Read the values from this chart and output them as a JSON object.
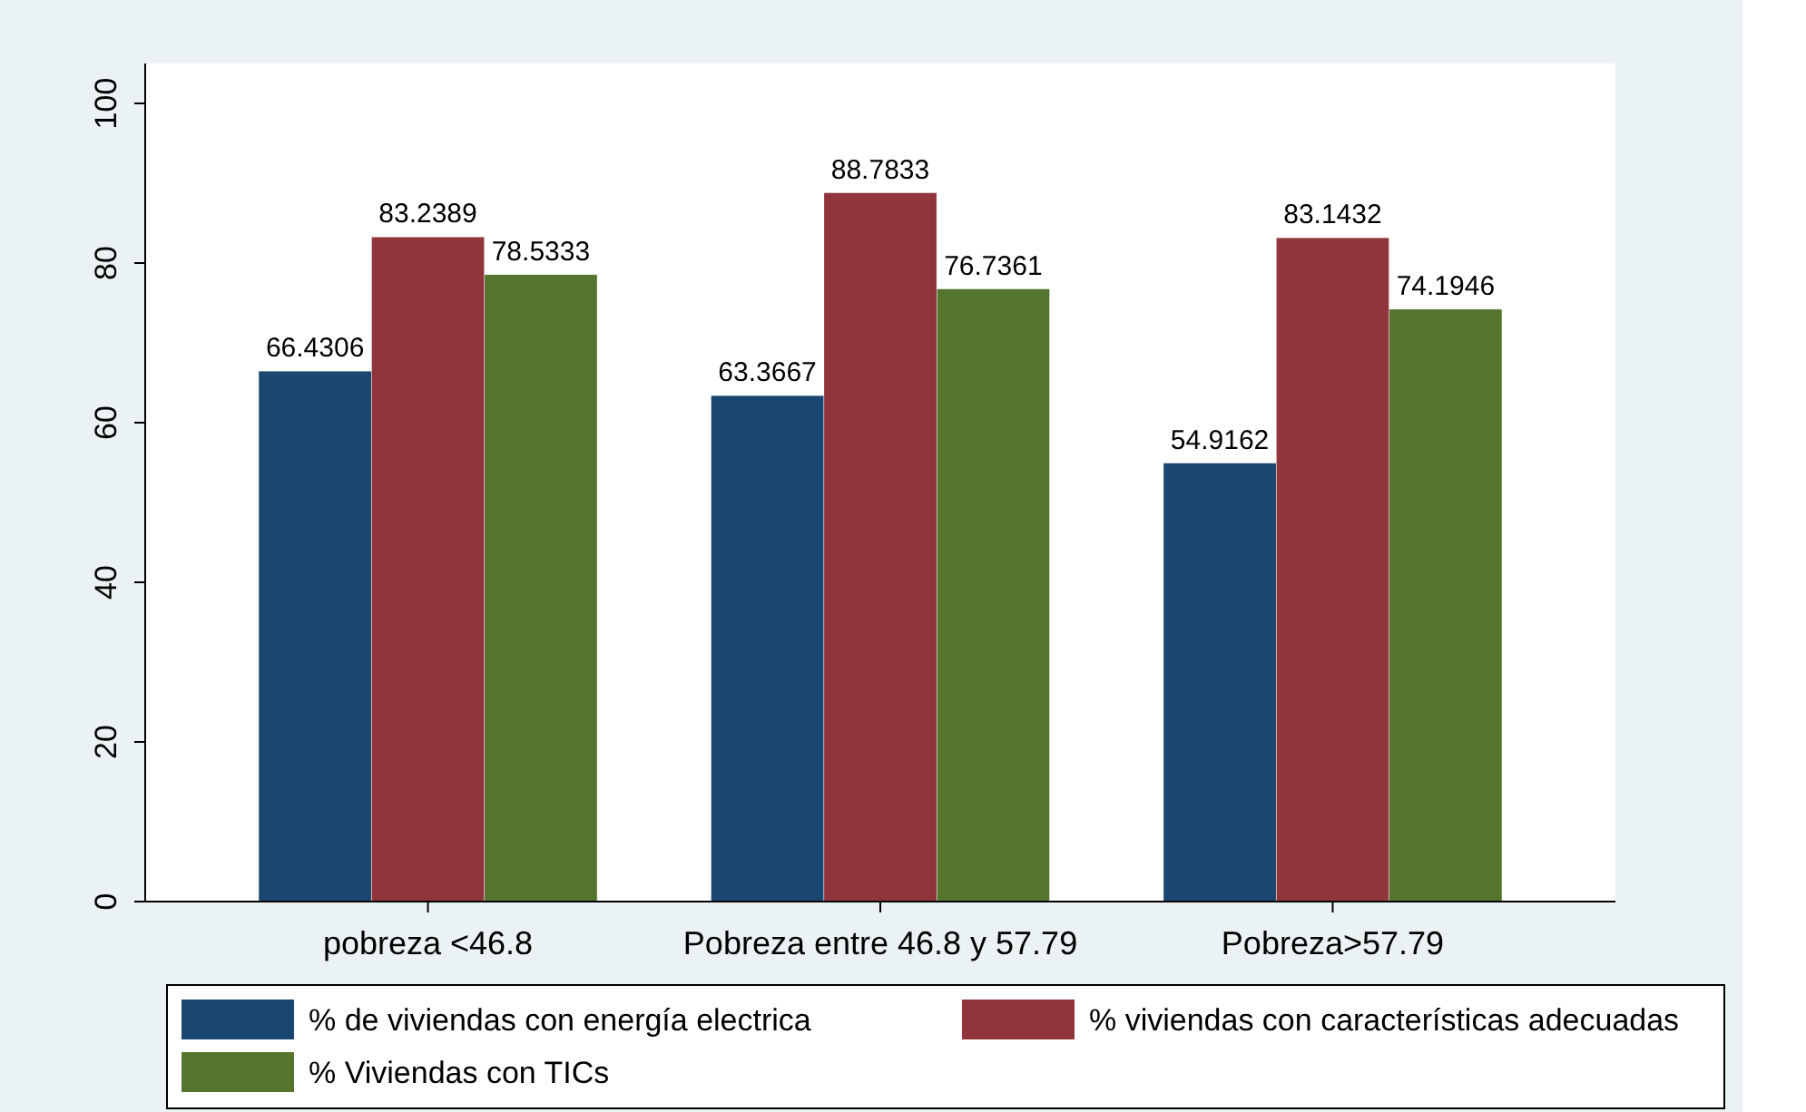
{
  "chart_data": {
    "type": "bar",
    "categories": [
      "pobreza <46.8",
      "Pobreza entre 46.8 y 57.79",
      "Pobreza>57.79"
    ],
    "series": [
      {
        "name": "% de viviendas con energía electrica",
        "color": "#1a476f",
        "values": [
          66.4306,
          63.3667,
          54.9162
        ]
      },
      {
        "name": "% viviendas con características adecuadas",
        "color": "#90353b",
        "values": [
          83.2389,
          88.7833,
          83.1432
        ]
      },
      {
        "name": "% Viviendas con TICs",
        "color": "#55752f",
        "values": [
          78.5333,
          76.7361,
          74.1946
        ]
      }
    ],
    "ylim": [
      0,
      105
    ],
    "yticks": [
      0,
      20,
      40,
      60,
      80,
      100
    ],
    "grid": false,
    "legend": "bottom",
    "data_labels": true
  }
}
